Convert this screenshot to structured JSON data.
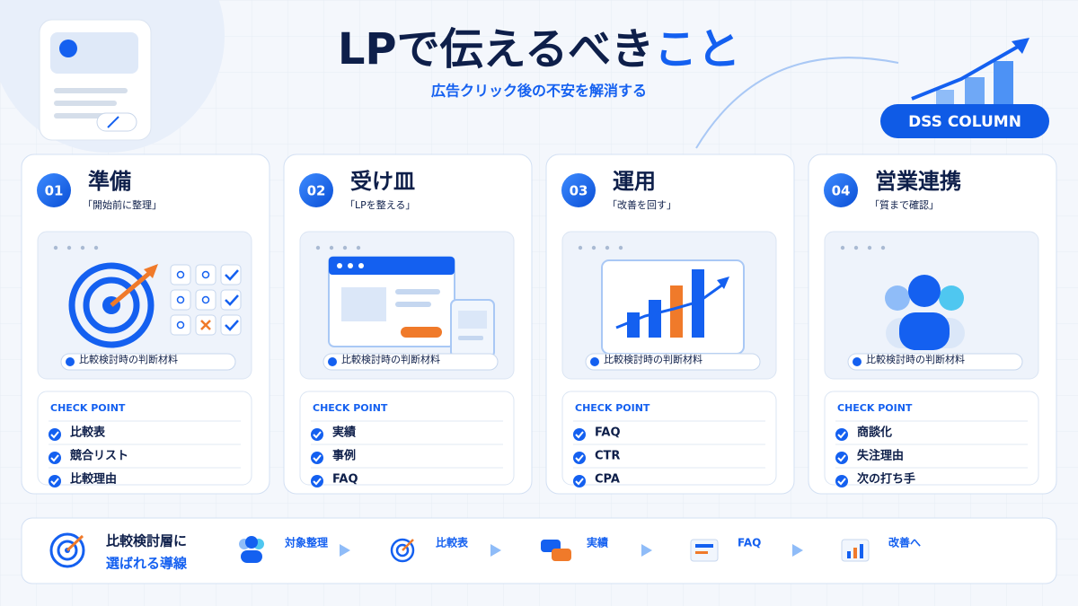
{
  "header": {
    "title_main": "LPで伝えるべき",
    "title_accent": "こと",
    "subtitle": "広告クリック後の不安を解消する",
    "badge": "DSS COLUMN"
  },
  "cards": [
    {
      "number": "01",
      "title": "準備",
      "tagline": "「開始前に整理」",
      "caption": "比較検討時の判断材料",
      "check_title": "CHECK POINT",
      "items": [
        "比較表",
        "競合リスト",
        "比較理由"
      ]
    },
    {
      "number": "02",
      "title": "受け皿",
      "tagline": "「LPを整える」",
      "caption": "比較検討時の判断材料",
      "check_title": "CHECK POINT",
      "items": [
        "実績",
        "事例",
        "FAQ"
      ]
    },
    {
      "number": "03",
      "title": "運用",
      "tagline": "「改善を回す」",
      "caption": "比較検討時の判断材料",
      "check_title": "CHECK POINT",
      "items": [
        "FAQ",
        "CTR",
        "CPA"
      ]
    },
    {
      "number": "04",
      "title": "営業連携",
      "tagline": "「質まで確認」",
      "caption": "比較検討時の判断材料",
      "check_title": "CHECK POINT",
      "items": [
        "商談化",
        "失注理由",
        "次の打ち手"
      ]
    }
  ],
  "footer": {
    "heading": [
      "比較検討層に",
      "選ばれる導線"
    ],
    "steps": [
      "対象整理",
      "比較表",
      "実績",
      "FAQ",
      "改善へ"
    ]
  }
}
